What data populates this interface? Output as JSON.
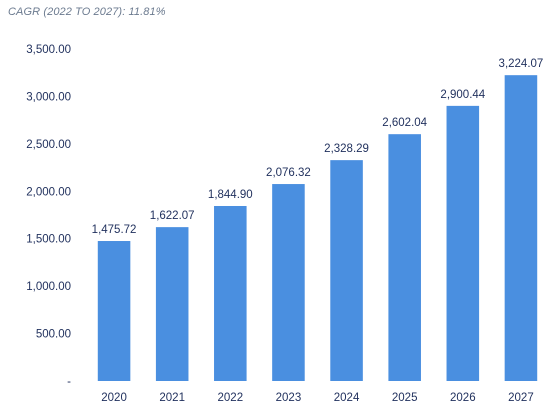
{
  "subtitle": "CAGR (2022 TO 2027): 11.81%",
  "chart_data": {
    "type": "bar",
    "title": "",
    "xlabel": "",
    "ylabel": "",
    "categories": [
      "2020",
      "2021",
      "2022",
      "2023",
      "2024",
      "2025",
      "2026",
      "2027"
    ],
    "values": [
      1475.72,
      1622.07,
      1844.9,
      2076.32,
      2328.29,
      2602.04,
      2900.44,
      3224.07
    ],
    "data_labels": [
      "1,475.72",
      "1,622.07",
      "1,844.90",
      "2,076.32",
      "2,328.29",
      "2,602.04",
      "2,900.44",
      "3,224.07"
    ],
    "ylim": [
      0,
      3500
    ],
    "y_ticks": [
      0,
      500,
      1000,
      1500,
      2000,
      2500,
      3000,
      3500
    ],
    "y_tick_labels": [
      "-",
      "500.00",
      "1,000.00",
      "1,500.00",
      "2,000.00",
      "2,500.00",
      "3,000.00",
      "3,500.00"
    ],
    "grid": false,
    "legend": "none",
    "bar_color": "#4a8fe0"
  }
}
